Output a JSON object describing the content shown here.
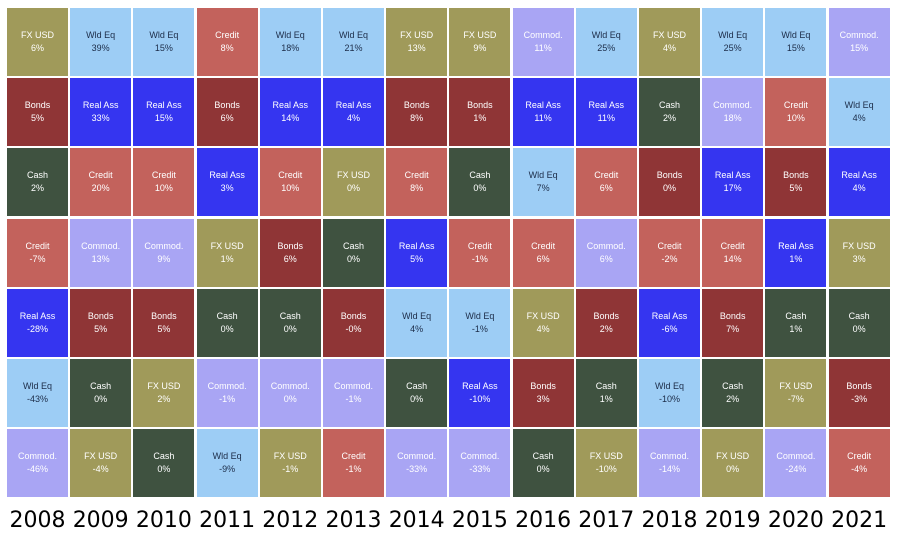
{
  "colors": {
    "Wld Eq": "#9dcdf5",
    "Real Ass": "#3535f0",
    "Credit": "#c3625c",
    "Bonds": "#8f3536",
    "Cash": "#3f5240",
    "FX USD": "#a09a5a",
    "Commod.": "#a9a5f4"
  },
  "text_colors": {
    "Wld Eq": "#1c2c48",
    "Real Ass": "#ffffff",
    "Credit": "#ffffff",
    "Bonds": "#ffffff",
    "Cash": "#ffffff",
    "FX USD": "#ffffff",
    "Commod.": "#ffffff"
  },
  "chart_data": {
    "type": "table",
    "title": "",
    "categories": [
      "2008",
      "2009",
      "2010",
      "2011",
      "2012",
      "2013",
      "2014",
      "2015",
      "2016",
      "2017",
      "2018",
      "2019",
      "2020",
      "2021"
    ],
    "columns": [
      [
        {
          "asset": "FX USD",
          "value": "6%"
        },
        {
          "asset": "Bonds",
          "value": "5%"
        },
        {
          "asset": "Cash",
          "value": "2%"
        },
        {
          "asset": "Credit",
          "value": "-7%"
        },
        {
          "asset": "Real Ass",
          "value": "-28%"
        },
        {
          "asset": "Wld Eq",
          "value": "-43%"
        },
        {
          "asset": "Commod.",
          "value": "-46%"
        }
      ],
      [
        {
          "asset": "Wld Eq",
          "value": "39%"
        },
        {
          "asset": "Real Ass",
          "value": "33%"
        },
        {
          "asset": "Credit",
          "value": "20%"
        },
        {
          "asset": "Commod.",
          "value": "13%"
        },
        {
          "asset": "Bonds",
          "value": "5%"
        },
        {
          "asset": "Cash",
          "value": "0%"
        },
        {
          "asset": "FX USD",
          "value": "-4%"
        }
      ],
      [
        {
          "asset": "Wld Eq",
          "value": "15%"
        },
        {
          "asset": "Real Ass",
          "value": "15%"
        },
        {
          "asset": "Credit",
          "value": "10%"
        },
        {
          "asset": "Commod.",
          "value": "9%"
        },
        {
          "asset": "Bonds",
          "value": "5%"
        },
        {
          "asset": "FX USD",
          "value": "2%"
        },
        {
          "asset": "Cash",
          "value": "0%"
        }
      ],
      [
        {
          "asset": "Credit",
          "value": "8%"
        },
        {
          "asset": "Bonds",
          "value": "6%"
        },
        {
          "asset": "Real Ass",
          "value": "3%"
        },
        {
          "asset": "FX USD",
          "value": "1%"
        },
        {
          "asset": "Cash",
          "value": "0%"
        },
        {
          "asset": "Commod.",
          "value": "-1%"
        },
        {
          "asset": "Wld Eq",
          "value": "-9%"
        }
      ],
      [
        {
          "asset": "Wld Eq",
          "value": "18%"
        },
        {
          "asset": "Real Ass",
          "value": "14%"
        },
        {
          "asset": "Credit",
          "value": "10%"
        },
        {
          "asset": "Bonds",
          "value": "6%"
        },
        {
          "asset": "Cash",
          "value": "0%"
        },
        {
          "asset": "Commod.",
          "value": "0%"
        },
        {
          "asset": "FX USD",
          "value": "-1%"
        }
      ],
      [
        {
          "asset": "Wld Eq",
          "value": "21%"
        },
        {
          "asset": "Real Ass",
          "value": "4%"
        },
        {
          "asset": "FX USD",
          "value": "0%"
        },
        {
          "asset": "Cash",
          "value": "0%"
        },
        {
          "asset": "Bonds",
          "value": "-0%"
        },
        {
          "asset": "Commod.",
          "value": "-1%"
        },
        {
          "asset": "Credit",
          "value": "-1%"
        }
      ],
      [
        {
          "asset": "FX USD",
          "value": "13%"
        },
        {
          "asset": "Bonds",
          "value": "8%"
        },
        {
          "asset": "Credit",
          "value": "8%"
        },
        {
          "asset": "Real Ass",
          "value": "5%"
        },
        {
          "asset": "Wld Eq",
          "value": "4%"
        },
        {
          "asset": "Cash",
          "value": "0%"
        },
        {
          "asset": "Commod.",
          "value": "-33%"
        }
      ],
      [
        {
          "asset": "FX USD",
          "value": "9%"
        },
        {
          "asset": "Bonds",
          "value": "1%"
        },
        {
          "asset": "Cash",
          "value": "0%"
        },
        {
          "asset": "Credit",
          "value": "-1%"
        },
        {
          "asset": "Wld Eq",
          "value": "-1%"
        },
        {
          "asset": "Real Ass",
          "value": "-10%"
        },
        {
          "asset": "Commod.",
          "value": "-33%"
        }
      ],
      [
        {
          "asset": "Commod.",
          "value": "11%"
        },
        {
          "asset": "Real Ass",
          "value": "11%"
        },
        {
          "asset": "Wld Eq",
          "value": "7%"
        },
        {
          "asset": "Credit",
          "value": "6%"
        },
        {
          "asset": "FX USD",
          "value": "4%"
        },
        {
          "asset": "Bonds",
          "value": "3%"
        },
        {
          "asset": "Cash",
          "value": "0%"
        }
      ],
      [
        {
          "asset": "Wld Eq",
          "value": "25%"
        },
        {
          "asset": "Real Ass",
          "value": "11%"
        },
        {
          "asset": "Credit",
          "value": "6%"
        },
        {
          "asset": "Commod.",
          "value": "6%"
        },
        {
          "asset": "Bonds",
          "value": "2%"
        },
        {
          "asset": "Cash",
          "value": "1%"
        },
        {
          "asset": "FX USD",
          "value": "-10%"
        }
      ],
      [
        {
          "asset": "FX USD",
          "value": "4%"
        },
        {
          "asset": "Cash",
          "value": "2%"
        },
        {
          "asset": "Bonds",
          "value": "0%"
        },
        {
          "asset": "Credit",
          "value": "-2%"
        },
        {
          "asset": "Real Ass",
          "value": "-6%"
        },
        {
          "asset": "Wld Eq",
          "value": "-10%"
        },
        {
          "asset": "Commod.",
          "value": "-14%"
        }
      ],
      [
        {
          "asset": "Wld Eq",
          "value": "25%"
        },
        {
          "asset": "Commod.",
          "value": "18%"
        },
        {
          "asset": "Real Ass",
          "value": "17%"
        },
        {
          "asset": "Credit",
          "value": "14%"
        },
        {
          "asset": "Bonds",
          "value": "7%"
        },
        {
          "asset": "Cash",
          "value": "2%"
        },
        {
          "asset": "FX USD",
          "value": "0%"
        }
      ],
      [
        {
          "asset": "Wld Eq",
          "value": "15%"
        },
        {
          "asset": "Credit",
          "value": "10%"
        },
        {
          "asset": "Bonds",
          "value": "5%"
        },
        {
          "asset": "Real Ass",
          "value": "1%"
        },
        {
          "asset": "Cash",
          "value": "1%"
        },
        {
          "asset": "FX USD",
          "value": "-7%"
        },
        {
          "asset": "Commod.",
          "value": "-24%"
        }
      ],
      [
        {
          "asset": "Commod.",
          "value": "15%"
        },
        {
          "asset": "Wld Eq",
          "value": "4%"
        },
        {
          "asset": "Real Ass",
          "value": "4%"
        },
        {
          "asset": "FX USD",
          "value": "3%"
        },
        {
          "asset": "Cash",
          "value": "0%"
        },
        {
          "asset": "Bonds",
          "value": "-3%"
        },
        {
          "asset": "Credit",
          "value": "-4%"
        }
      ]
    ]
  }
}
